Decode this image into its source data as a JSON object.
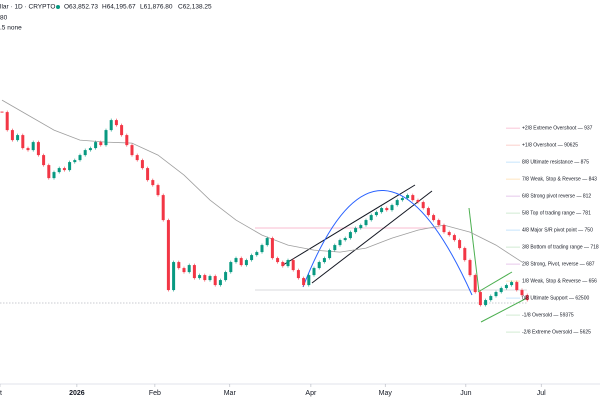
{
  "chart_data": {
    "type": "candlestick",
    "header": {
      "symbol": "llar · 1D · CRYPTO",
      "ohlc_labels": [
        "O63,852.73",
        "H64,195.67",
        "L61,876.80",
        "C62,138.25"
      ],
      "lines": [
        "80",
        ".5 none"
      ]
    },
    "up_color": "#089981",
    "down_color": "#f23645",
    "values": [
      96691,
      93382,
      91544,
      92463,
      90073,
      89705,
      91176,
      88786,
      86948,
      84558,
      85661,
      86397,
      86029,
      87500,
      87867,
      88786,
      89705,
      90073,
      91176,
      90624,
      93382,
      95220,
      94301,
      92463,
      90624,
      88786,
      87867,
      86397,
      84191,
      83272,
      81433,
      76838,
      63971,
      69118,
      68015,
      67279,
      68566,
      66176,
      66728,
      65809,
      66544,
      64890,
      65809,
      67279,
      69118,
      69853,
      68566,
      69485,
      70404,
      70956,
      72242,
      73529,
      69853,
      69118,
      68382,
      69485,
      67647,
      66176,
      64890,
      66728,
      68015,
      69118,
      69853,
      71323,
      72242,
      73162,
      73529,
      74632,
      75367,
      75919,
      76838,
      77757,
      78309,
      79044,
      78676,
      79595,
      80514,
      80882,
      81433,
      80514,
      80147,
      79044,
      77757,
      76838,
      75919,
      74632,
      74081,
      73162,
      71691,
      69485,
      66728,
      63603,
      61213,
      62132,
      62868,
      63603,
      64338,
      64890,
      65441,
      63971,
      63051,
      62138
    ],
    "ma": {
      "color": "#9e9e9e",
      "x": [
        0,
        5,
        10,
        15,
        20,
        25,
        30,
        35,
        40,
        45,
        50,
        55,
        60,
        65,
        70,
        75,
        80,
        85,
        90,
        95,
        100
      ],
      "values": [
        98896,
        96139,
        93382,
        91544,
        91176,
        90992,
        88786,
        85110,
        80514,
        76838,
        74081,
        72242,
        71323,
        70956,
        71691,
        73529,
        75000,
        75919,
        74632,
        72242,
        69118
      ]
    },
    "levels": [
      {
        "label": "+2/8 Extreme Overshoot — 937",
        "value": 93750,
        "color": "#e91e63"
      },
      {
        "label": "+1/8 Overshoot — 90625",
        "value": 90625,
        "color": "#f44336"
      },
      {
        "label": "8/8 Ultimate resistance — 875",
        "value": 87500,
        "color": "#2196f3"
      },
      {
        "label": "7/8 Weak, Stop & Reverse — 843",
        "value": 84375,
        "color": "#ff9800"
      },
      {
        "label": "6/8 Strong pivot reverse — 812",
        "value": 81250,
        "color": "#9c27b0"
      },
      {
        "label": "5/8 Top of trading range — 781",
        "value": 78125,
        "color": "#4caf50"
      },
      {
        "label": "4/8 Major S/R pivot point — 750",
        "value": 75000,
        "color": "#2196f3"
      },
      {
        "label": "3/8 Bottom of trading range — 718",
        "value": 71875,
        "color": "#4caf50"
      },
      {
        "label": "2/8 Strong, Pivot, reverse — 687",
        "value": 68750,
        "color": "#9c27b0"
      },
      {
        "label": "1/8 Weak, Stop & Reverse — 656",
        "value": 65625,
        "color": "#ff9800"
      },
      {
        "label": "0/8 Ultimate Support — 62500",
        "value": 62500,
        "color": "#2196f3"
      },
      {
        "label": "-1/8 Oversold — 59375",
        "value": 59375,
        "color": "#4caf50"
      },
      {
        "label": "-2/8 Extreme Oversold — 5625",
        "value": 56250,
        "color": "#4caf50"
      }
    ],
    "xlim": [
      -0.385,
      115
    ],
    "ylim": [
      46700,
      117300
    ],
    "xticks": [
      {
        "value": -0.385,
        "label": "t"
      },
      {
        "value": 14.4,
        "label": "2026"
      },
      {
        "value": 29.4,
        "label": "Feb"
      },
      {
        "value": 43.8,
        "label": "Mar"
      },
      {
        "value": 59.4,
        "label": "Apr"
      },
      {
        "value": 73.7,
        "label": "May"
      },
      {
        "value": 89.2,
        "label": "Jun"
      },
      {
        "value": 103.7,
        "label": "Jul"
      }
    ]
  }
}
